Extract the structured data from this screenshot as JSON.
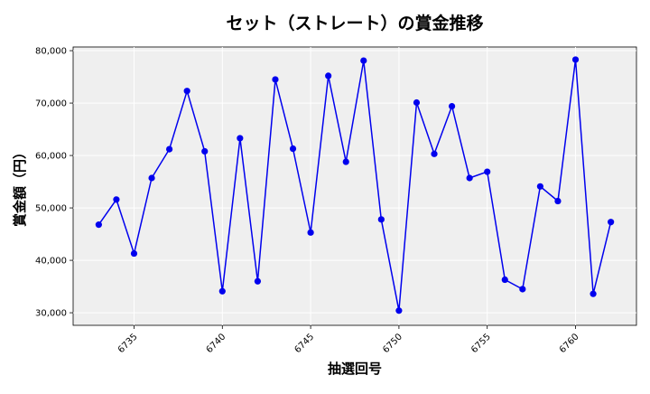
{
  "chart_data": {
    "type": "line",
    "title": "セット（ストレート）の賞金推移",
    "xlabel": "抽選回号",
    "ylabel": "賞金額（円）",
    "x": [
      6733,
      6734,
      6735,
      6736,
      6737,
      6738,
      6739,
      6740,
      6741,
      6742,
      6743,
      6744,
      6745,
      6746,
      6747,
      6748,
      6749,
      6750,
      6751,
      6752,
      6753,
      6754,
      6755,
      6756,
      6757,
      6758,
      6759,
      6760,
      6761,
      6762
    ],
    "series": [
      {
        "values": [
          46800,
          51600,
          41300,
          55700,
          61200,
          72300,
          60800,
          34100,
          63300,
          36000,
          74500,
          61300,
          45300,
          75200,
          58800,
          78100,
          47800,
          30400,
          70100,
          60300,
          69400,
          55700,
          56900,
          36300,
          34500,
          54100,
          51300,
          78300,
          33600,
          47300
        ],
        "color": "#0000ee"
      }
    ],
    "xticks": [
      6735,
      6740,
      6745,
      6750,
      6755,
      6760
    ],
    "yticks": [
      30000,
      40000,
      50000,
      60000,
      70000,
      80000
    ],
    "ytick_labels": [
      "30,000",
      "40,000",
      "50,000",
      "60,000",
      "70,000",
      "80,000"
    ],
    "xlim": [
      6731.55,
      6763.45
    ],
    "ylim": [
      27600,
      80700
    ],
    "grid": true,
    "plot_background": "#efefef"
  }
}
